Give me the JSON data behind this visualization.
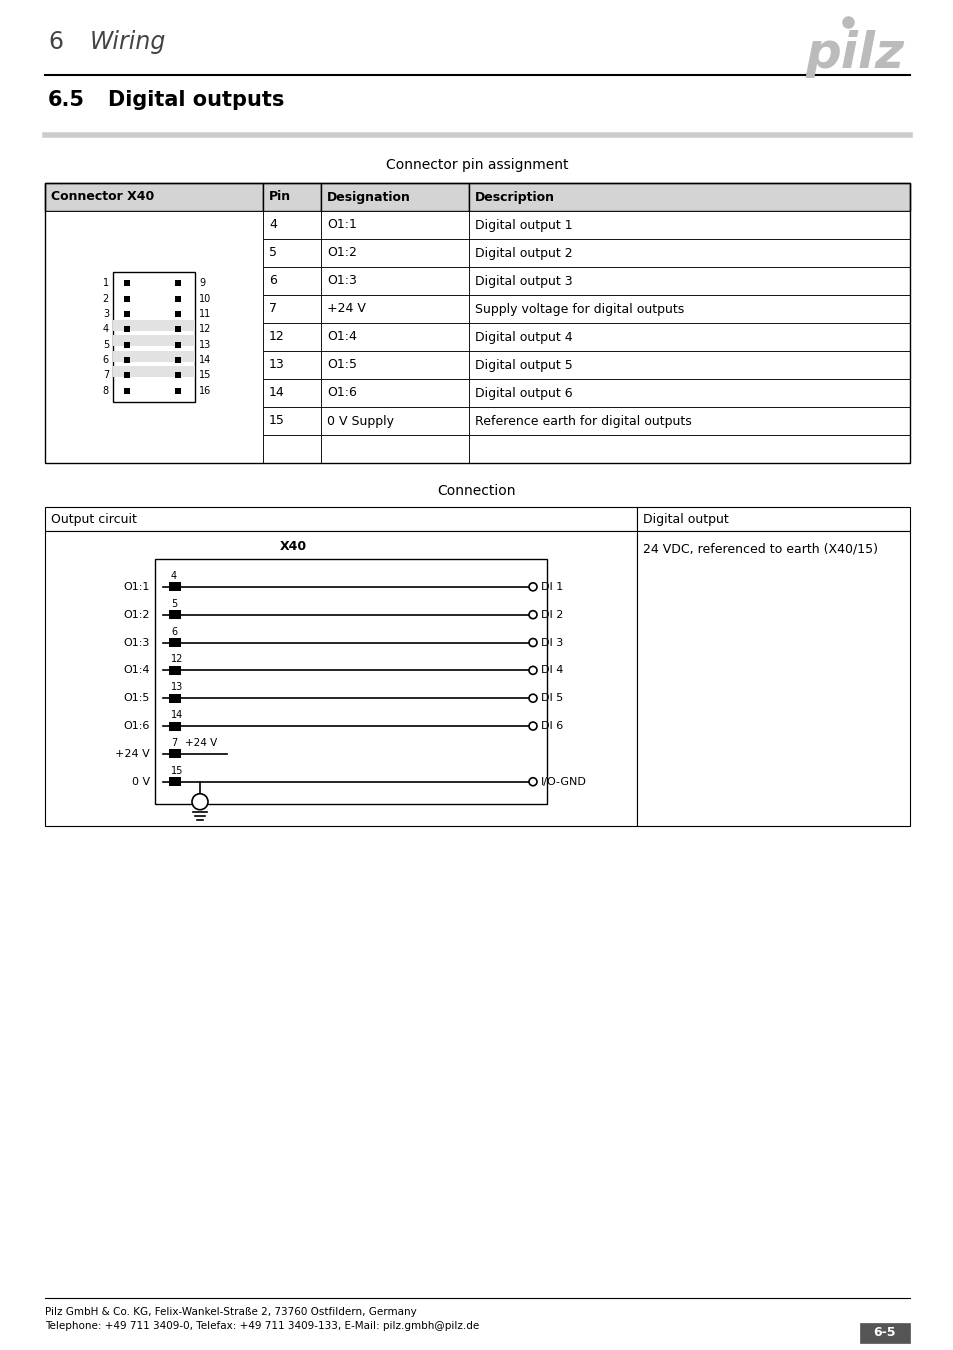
{
  "page_title_num": "6",
  "page_title_text": "Wiring",
  "section_num": "6.5",
  "section_text": "Digital outputs",
  "table_title": "Connector pin assignment",
  "connection_title": "Connection",
  "table_headers": [
    "Connector X40",
    "Pin",
    "Designation",
    "Description"
  ],
  "table_rows": [
    [
      "4",
      "O1:1",
      "Digital output 1"
    ],
    [
      "5",
      "O1:2",
      "Digital output 2"
    ],
    [
      "6",
      "O1:3",
      "Digital output 3"
    ],
    [
      "7",
      "+24 V",
      "Supply voltage for digital outputs"
    ],
    [
      "12",
      "O1:4",
      "Digital output 4"
    ],
    [
      "13",
      "O1:5",
      "Digital output 5"
    ],
    [
      "14",
      "O1:6",
      "Digital output 6"
    ],
    [
      "15",
      "0 V Supply",
      "Reference earth for digital outputs"
    ],
    [
      "",
      "",
      ""
    ]
  ],
  "connector_rows_left": [
    "1",
    "2",
    "3",
    "4",
    "5",
    "6",
    "7",
    "8"
  ],
  "connector_rows_right": [
    "9",
    "10",
    "11",
    "12",
    "13",
    "14",
    "15",
    "16"
  ],
  "highlight_pin_rows": [
    3,
    4,
    5,
    6
  ],
  "circuit_outputs": [
    "O1:1",
    "O1:2",
    "O1:3",
    "O1:4",
    "O1:5",
    "O1:6"
  ],
  "circuit_pins": [
    "4",
    "5",
    "6",
    "12",
    "13",
    "14"
  ],
  "circuit_labels": [
    "DI 1",
    "DI 2",
    "DI 3",
    "DI 4",
    "DI 5",
    "DI 6"
  ],
  "conn_hdr_left": "Output circuit",
  "conn_hdr_right": "Digital output",
  "conn_body_right": "24 VDC, referenced to earth (X40/15)",
  "footer_line1": "Pilz GmbH & Co. KG, Felix-Wankel-Straße 2, 73760 Ostfildern, Germany",
  "footer_line2": "Telephone: +49 711 3409-0, Telefax: +49 711 3409-133, E-Mail: pilz.gmbh@pilz.de",
  "page_num": "6-5",
  "bg_color": "#ffffff",
  "logo_color": "#aaaaaa",
  "table_border": "#000000",
  "header_fill": "#d4d4d4"
}
